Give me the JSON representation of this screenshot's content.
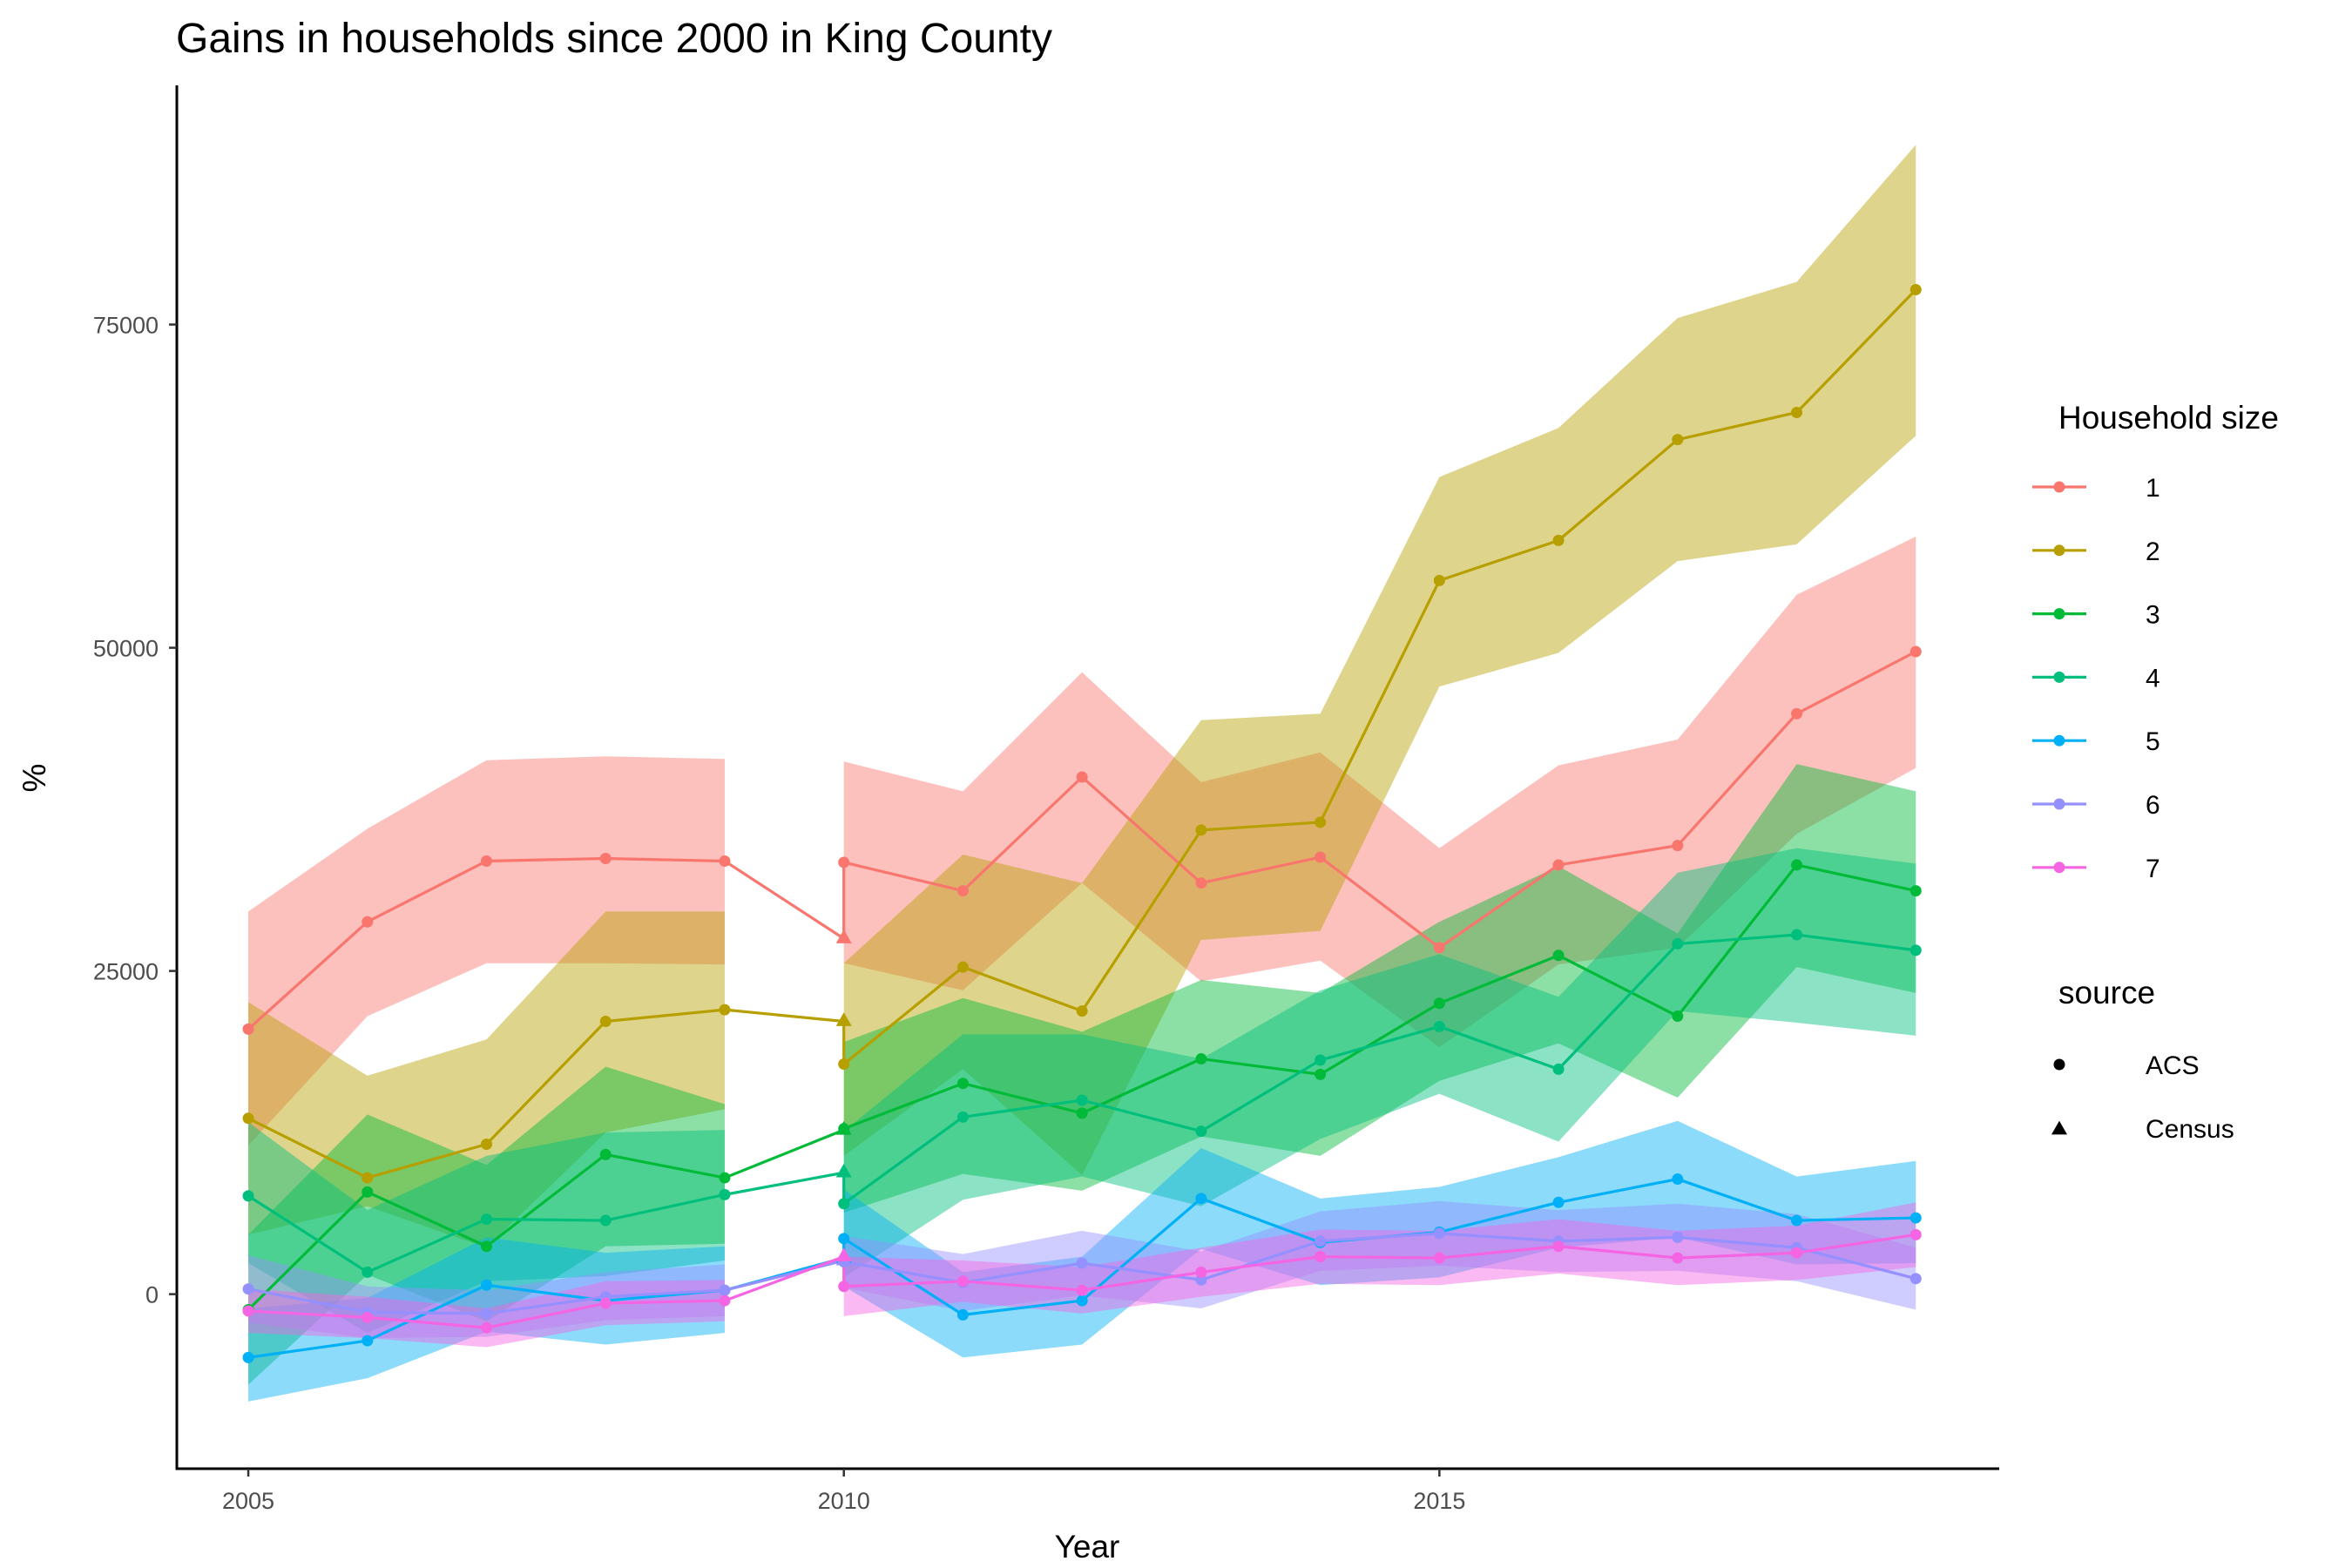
{
  "chart_data": {
    "type": "line",
    "title": "Gains in households since 2000 in King County",
    "xlabel": "Year",
    "ylabel": "%",
    "xlim": [
      2004.4,
      2019.7
    ],
    "ylim": [
      -13500,
      93500
    ],
    "x_ticks": [
      2005,
      2010,
      2015
    ],
    "y_ticks": [
      0,
      25000,
      50000,
      75000
    ],
    "grid": false,
    "legend_position": "right",
    "legend_household_title": "Household size",
    "legend_source_title": "source",
    "sources": [
      {
        "name": "ACS",
        "shape": "circle"
      },
      {
        "name": "Census",
        "shape": "triangle"
      }
    ],
    "census_year": 2010,
    "series": [
      {
        "name": "1",
        "color": "#F8766D",
        "segments": [
          {
            "x": [
              2005,
              2006,
              2007,
              2008,
              2009
            ],
            "y": [
              20500,
              28800,
              33500,
              33700,
              33500
            ],
            "lo": [
              11500,
              21500,
              25600,
              25600,
              25500
            ],
            "hi": [
              29600,
              36000,
              41300,
              41600,
              41400
            ]
          },
          {
            "x": [
              2010,
              2011,
              2012,
              2013,
              2014,
              2015,
              2016,
              2017,
              2018,
              2019
            ],
            "y": [
              33400,
              31200,
              40000,
              31800,
              33800,
              26800,
              33200,
              34700,
              44900,
              49700
            ],
            "lo": [
              25600,
              23500,
              31800,
              24200,
              25800,
              19100,
              25500,
              26800,
              35600,
              40700
            ],
            "hi": [
              41200,
              38900,
              48100,
              39600,
              41900,
              34500,
              40900,
              42900,
              54100,
              58600
            ]
          }
        ]
      },
      {
        "name": "2",
        "color": "#B79F00",
        "segments": [
          {
            "x": [
              2005,
              2006,
              2007,
              2008,
              2009
            ],
            "y": [
              13600,
              9000,
              11600,
              21100,
              22000
            ],
            "lo": [
              4600,
              6800,
              3600,
              12500,
              14300
            ],
            "hi": [
              22600,
              16900,
              19700,
              29600,
              29600
            ]
          },
          {
            "x": [
              2010,
              2011,
              2012,
              2013,
              2014,
              2015,
              2016,
              2017,
              2018,
              2019
            ],
            "y": [
              17800,
              25300,
              21900,
              35900,
              36500,
              55200,
              58300,
              66100,
              68200,
              77700
            ],
            "lo": [
              10700,
              17400,
              9200,
              27400,
              28100,
              47000,
              49600,
              56700,
              58000,
              66400
            ],
            "hi": [
              25600,
              34000,
              31800,
              44400,
              44900,
              63200,
              67000,
              75500,
              78300,
              88900
            ]
          }
        ]
      },
      {
        "name": "3",
        "color": "#00BA38",
        "segments": [
          {
            "x": [
              2005,
              2006,
              2007,
              2008,
              2009
            ],
            "y": [
              -1200,
              7900,
              3700,
              10800,
              9000
            ],
            "lo": [
              -7000,
              1500,
              -2100,
              3700,
              3900
            ],
            "hi": [
              4600,
              13900,
              10000,
              17600,
              14700
            ]
          },
          {
            "x": [
              2010,
              2011,
              2012,
              2013,
              2014,
              2015,
              2016,
              2017,
              2018,
              2019
            ],
            "y": [
              12800,
              16300,
              14000,
              18200,
              17000,
              22500,
              26200,
              21500,
              33200,
              31200
            ],
            "lo": [
              6300,
              9300,
              8000,
              12200,
              10700,
              16500,
              19400,
              15200,
              25300,
              23300
            ],
            "hi": [
              19500,
              22900,
              20300,
              24300,
              23300,
              28800,
              33100,
              27900,
              41000,
              38900
            ]
          }
        ]
      },
      {
        "name": "4",
        "color": "#00BF7D",
        "segments": [
          {
            "x": [
              2005,
              2006,
              2007,
              2008,
              2009
            ],
            "y": [
              7600,
              1700,
              5800,
              5700,
              7700
            ],
            "lo": [
              2400,
              -3000,
              1000,
              1400,
              2600
            ],
            "hi": [
              13300,
              6500,
              10700,
              12500,
              12700
            ]
          },
          {
            "x": [
              2010,
              2011,
              2012,
              2013,
              2014,
              2015,
              2016,
              2017,
              2018,
              2019
            ],
            "y": [
              7000,
              13700,
              15000,
              12600,
              18100,
              20700,
              17400,
              27100,
              27800,
              26600
            ],
            "lo": [
              1300,
              7300,
              9100,
              6800,
              12000,
              15500,
              11800,
              21900,
              21000,
              20000
            ],
            "hi": [
              12600,
              20100,
              20100,
              18200,
              23500,
              26300,
              23000,
              32600,
              34500,
              33300
            ]
          }
        ]
      },
      {
        "name": "5",
        "color": "#00B0F6",
        "segments": [
          {
            "x": [
              2005,
              2006,
              2007,
              2008,
              2009
            ],
            "y": [
              -4900,
              -3600,
              700,
              -500,
              300
            ],
            "lo": [
              -8300,
              -6500,
              -2900,
              -3900,
              -3000
            ],
            "hi": [
              -1100,
              -300,
              4400,
              3200,
              3700
            ]
          },
          {
            "x": [
              2010,
              2011,
              2012,
              2013,
              2014,
              2015,
              2016,
              2017,
              2018,
              2019
            ],
            "y": [
              4300,
              -1600,
              -500,
              7400,
              4000,
              4800,
              7100,
              8900,
              5700,
              5900
            ],
            "lo": [
              600,
              -4900,
              -3900,
              3500,
              700,
              1300,
              3600,
              4400,
              2300,
              2400
            ],
            "hi": [
              8100,
              1700,
              2900,
              11300,
              7400,
              8300,
              10600,
              13400,
              9100,
              10300
            ]
          }
        ]
      },
      {
        "name": "6",
        "color": "#9590FF",
        "segments": [
          {
            "x": [
              2005,
              2006,
              2007,
              2008,
              2009
            ],
            "y": [
              400,
              -1400,
              -1500,
              -200,
              300
            ],
            "lo": [
              -2200,
              -3400,
              -3300,
              -2000,
              -1700
            ],
            "hi": [
              3000,
              600,
              300,
              1700,
              2300
            ]
          },
          {
            "x": [
              2010,
              2011,
              2012,
              2013,
              2014,
              2015,
              2016,
              2017,
              2018,
              2019
            ],
            "y": [
              2500,
              900,
              2400,
              1100,
              4100,
              4700,
              4100,
              4400,
              3600,
              1200
            ],
            "lo": [
              500,
              -1300,
              -100,
              -1100,
              1800,
              2200,
              1700,
              1800,
              1000,
              -1200
            ],
            "hi": [
              4500,
              3100,
              4900,
              3300,
              6400,
              7200,
              6500,
              7000,
              6200,
              3600
            ]
          }
        ]
      },
      {
        "name": "7",
        "color": "#F564E3",
        "segments": [
          {
            "x": [
              2005,
              2006,
              2007,
              2008,
              2009
            ],
            "y": [
              -1300,
              -1800,
              -2600,
              -700,
              -500
            ],
            "lo": [
              -3000,
              -3400,
              -4100,
              -2400,
              -2100
            ],
            "hi": [
              400,
              -200,
              -1100,
              1000,
              1100
            ]
          },
          {
            "x": [
              2010,
              2011,
              2012,
              2013,
              2014,
              2015,
              2016,
              2017,
              2018,
              2019
            ],
            "y": [
              600,
              1000,
              300,
              1700,
              2900,
              2800,
              3700,
              2800,
              3200,
              4600
            ],
            "lo": [
              -1700,
              -600,
              -1500,
              -200,
              800,
              700,
              1600,
              700,
              1100,
              2100
            ],
            "hi": [
              2900,
              2600,
              2100,
              3600,
              5000,
              4900,
              5800,
              4900,
              5300,
              7100
            ]
          }
        ]
      }
    ],
    "census_points": [
      {
        "series": "1",
        "x": 2010,
        "y": 27500
      },
      {
        "series": "2",
        "x": 2010,
        "y": 21100
      },
      {
        "series": "3",
        "x": 2010,
        "y": 12700
      },
      {
        "series": "4",
        "x": 2010,
        "y": 9400
      },
      {
        "series": "5",
        "x": 2010,
        "y": 2800
      },
      {
        "series": "6",
        "x": 2010,
        "y": 2600
      },
      {
        "series": "7",
        "x": 2010,
        "y": 2900
      }
    ],
    "acs_2009_2010_joins": [
      {
        "series": "1",
        "from": [
          2009,
          33500
        ],
        "to": [
          2010,
          27500
        ]
      },
      {
        "series": "2",
        "from": [
          2009,
          22000
        ],
        "to": [
          2010,
          21100
        ]
      },
      {
        "series": "3",
        "from": [
          2009,
          9000
        ],
        "to": [
          2010,
          12700
        ]
      },
      {
        "series": "4",
        "from": [
          2009,
          7700
        ],
        "to": [
          2010,
          9400
        ]
      },
      {
        "series": "5",
        "from": [
          2009,
          300
        ],
        "to": [
          2010,
          2800
        ]
      },
      {
        "series": "6",
        "from": [
          2009,
          300
        ],
        "to": [
          2010,
          2600
        ]
      },
      {
        "series": "7",
        "from": [
          2009,
          -500
        ],
        "to": [
          2010,
          2900
        ]
      }
    ]
  }
}
